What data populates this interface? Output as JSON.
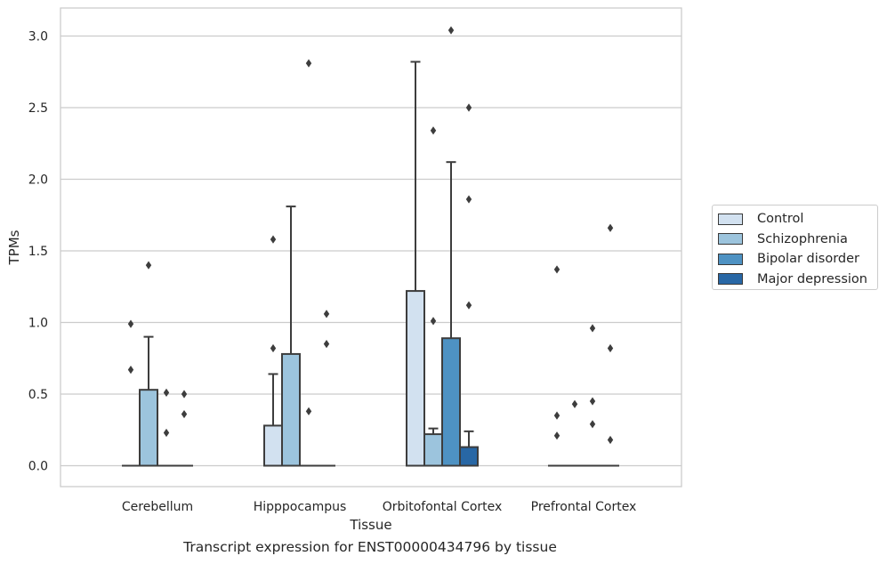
{
  "caption": "Transcript expression for ENST00000434796 by tissue",
  "chart_data": {
    "type": "box",
    "xlabel": "Tissue",
    "ylabel": "TPMs",
    "ylim": [
      -0.15,
      3.2
    ],
    "yticks": [
      0.0,
      0.5,
      1.0,
      1.5,
      2.0,
      2.5,
      3.0
    ],
    "ytick_labels": [
      "0.0",
      "0.5",
      "1.0",
      "1.5",
      "2.0",
      "2.5",
      "3.0"
    ],
    "categories": [
      "Cerebellum",
      "Hipppocampus",
      "Orbitofontal Cortex",
      "Prefrontal Cortex"
    ],
    "grid": true,
    "legend_position": "outside right",
    "series": [
      {
        "name": "Control",
        "color": "#d2e1f0",
        "boxes": [
          {
            "q1": 0,
            "median": 0,
            "q3": 0,
            "whisker_low": 0,
            "whisker_high": 0,
            "outliers": [
              0.99,
              0.67
            ]
          },
          {
            "q1": 0,
            "median": 0,
            "q3": 0.28,
            "whisker_low": 0,
            "whisker_high": 0.64,
            "outliers": [
              1.58,
              0.82
            ]
          },
          {
            "q1": 0,
            "median": 0,
            "q3": 1.22,
            "whisker_low": 0,
            "whisker_high": 2.82,
            "outliers": []
          },
          {
            "q1": 0,
            "median": 0,
            "q3": 0,
            "whisker_low": 0,
            "whisker_high": 0,
            "outliers": [
              1.37,
              0.35,
              0.21
            ]
          }
        ]
      },
      {
        "name": "Schizophrenia",
        "color": "#9cc4dd",
        "boxes": [
          {
            "q1": 0,
            "median": 0,
            "q3": 0.53,
            "whisker_low": 0,
            "whisker_high": 0.9,
            "outliers": [
              1.4
            ]
          },
          {
            "q1": 0,
            "median": 0,
            "q3": 0.78,
            "whisker_low": 0,
            "whisker_high": 1.81,
            "outliers": []
          },
          {
            "q1": 0,
            "median": 0,
            "q3": 0.22,
            "whisker_low": 0,
            "whisker_high": 0.26,
            "outliers": [
              2.34,
              1.01
            ]
          },
          {
            "q1": 0,
            "median": 0,
            "q3": 0,
            "whisker_low": 0,
            "whisker_high": 0,
            "outliers": [
              0.43
            ]
          }
        ]
      },
      {
        "name": "Bipolar disorder",
        "color": "#4e92c3",
        "boxes": [
          {
            "q1": 0,
            "median": 0,
            "q3": 0,
            "whisker_low": 0,
            "whisker_high": 0,
            "outliers": [
              0.51,
              0.23
            ]
          },
          {
            "q1": 0,
            "median": 0,
            "q3": 0,
            "whisker_low": 0,
            "whisker_high": 0,
            "outliers": [
              2.81,
              0.38
            ]
          },
          {
            "q1": 0,
            "median": 0,
            "q3": 0.89,
            "whisker_low": 0,
            "whisker_high": 2.12,
            "outliers": [
              3.04
            ]
          },
          {
            "q1": 0,
            "median": 0,
            "q3": 0,
            "whisker_low": 0,
            "whisker_high": 0,
            "outliers": [
              0.96,
              0.45,
              0.29
            ]
          }
        ]
      },
      {
        "name": "Major depression",
        "color": "#2867a5",
        "boxes": [
          {
            "q1": 0,
            "median": 0,
            "q3": 0,
            "whisker_low": 0,
            "whisker_high": 0,
            "outliers": [
              0.5,
              0.36
            ]
          },
          {
            "q1": 0,
            "median": 0,
            "q3": 0,
            "whisker_low": 0,
            "whisker_high": 0,
            "outliers": [
              1.06,
              0.85
            ]
          },
          {
            "q1": 0,
            "median": 0,
            "q3": 0.13,
            "whisker_low": 0,
            "whisker_high": 0.24,
            "outliers": [
              2.5,
              1.86,
              1.12
            ]
          },
          {
            "q1": 0,
            "median": 0,
            "q3": 0,
            "whisker_low": 0,
            "whisker_high": 0,
            "outliers": [
              1.66,
              0.82,
              0.18
            ]
          }
        ]
      }
    ]
  }
}
